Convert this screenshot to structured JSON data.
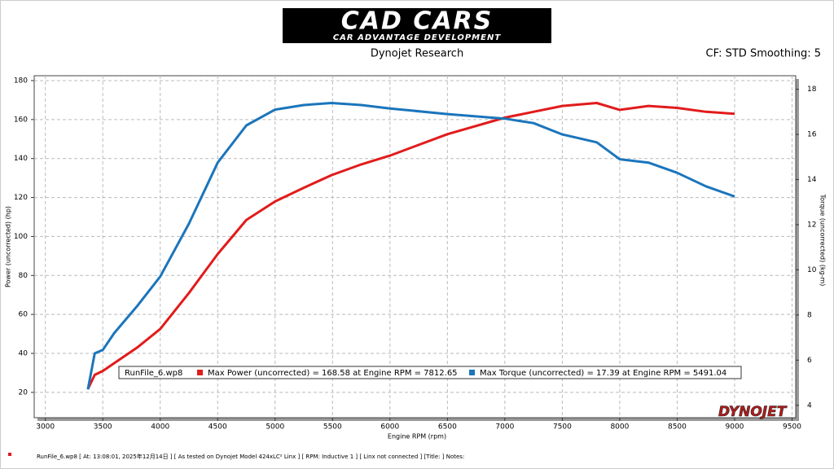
{
  "chart_data": {
    "type": "line",
    "logo_title": "CAD CARS",
    "logo_subtitle": "CAR ADVANTAGE DEVELOPMENT",
    "title": "Dynojet Research",
    "settings_label": "CF: STD Smoothing: 5",
    "x_label": "Engine RPM (rpm)",
    "y_label": "Power (uncorrected) (hp)",
    "y2_label": "Torque (uncorrected) (kg-m)",
    "run_file": "RunFile_6.wp8",
    "brand": "DYNOJET",
    "footer": "RunFile_6.wp8  [  At:  13:08:01,  2025年12月14日 ] [ As tested on Dynojet Model 424xLC² Linx ] [ RPM: Inductive 1 ] [ Linx not connected ] [Title: ]  Notes:",
    "x": [
      3370,
      3430,
      3500,
      3600,
      3800,
      4000,
      4250,
      4500,
      4750,
      5000,
      5250,
      5491,
      5750,
      6000,
      6500,
      7000,
      7250,
      7500,
      7800,
      8000,
      8250,
      8500,
      8750,
      9000
    ],
    "series": [
      {
        "name": "Max Power (uncorrected) = 168.58 at Engine RPM = 7812.65",
        "color": "#e21b1b",
        "axis": "y",
        "values": [
          21.7,
          29,
          31,
          35,
          43,
          52.5,
          71,
          91,
          108.5,
          118,
          125,
          131.5,
          137,
          141.5,
          152.5,
          161,
          164,
          167,
          168.5,
          165,
          167,
          166,
          164,
          163
        ]
      },
      {
        "name": "Max Torque (uncorrected) = 17.39 at Engine RPM = 5491.04",
        "color": "#1b75bb",
        "axis": "y2",
        "values": [
          4.7,
          6.3,
          6.45,
          7.2,
          8.4,
          9.7,
          12.05,
          14.75,
          16.4,
          17.1,
          17.3,
          17.39,
          17.3,
          17.15,
          16.9,
          16.7,
          16.5,
          16.0,
          15.65,
          14.9,
          14.75,
          14.3,
          13.7,
          13.25
        ]
      }
    ],
    "xlim": [
      2903,
      9532
    ],
    "xticks": [
      3000,
      3500,
      4000,
      4500,
      5000,
      5500,
      6000,
      6500,
      7000,
      7500,
      8000,
      8500,
      9000,
      9500
    ],
    "ylim": [
      7,
      182.5
    ],
    "yticks": [
      20,
      40,
      60,
      80,
      100,
      120,
      140,
      160,
      180
    ],
    "y2lim": [
      3.45,
      18.6
    ],
    "y2ticks": [
      4,
      6,
      8,
      10,
      12,
      14,
      16,
      18
    ],
    "grid": true
  }
}
